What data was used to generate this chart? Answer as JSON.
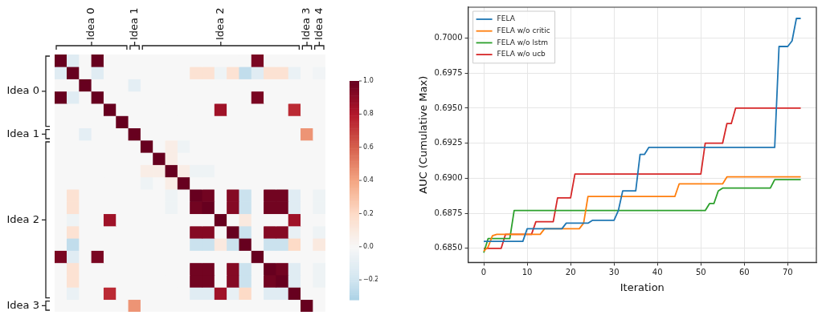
{
  "chart_data": [
    {
      "type": "heatmap",
      "categories": [
        null,
        null,
        "Idea 0",
        null,
        null,
        null,
        "Idea 1",
        null,
        null,
        null,
        null,
        null,
        null,
        "Idea 2",
        null,
        null,
        null,
        null,
        null,
        null,
        "Idea 3",
        "Idea 4"
      ],
      "y_categories": [
        null,
        null,
        "Idea 0",
        null,
        null,
        null,
        "Idea 1",
        null,
        null,
        null,
        null,
        null,
        null,
        "Idea 2",
        null,
        null,
        null,
        null,
        null,
        null,
        "Idea 3"
      ],
      "cells": [
        [
          1,
          -0.12,
          0,
          1,
          0,
          0,
          0,
          0,
          0,
          0,
          0,
          0,
          0,
          0,
          0,
          0,
          0.95,
          0,
          0,
          0,
          0,
          0
        ],
        [
          -0.12,
          1,
          0,
          -0.12,
          0,
          0,
          0,
          0,
          0,
          0,
          0,
          0.15,
          0.15,
          -0.05,
          0.15,
          -0.25,
          -0.12,
          0.15,
          0.15,
          -0.07,
          0,
          -0.03
        ],
        [
          0,
          0,
          1,
          0,
          0,
          0,
          -0.1,
          0,
          0,
          0,
          0,
          0,
          0,
          0,
          0,
          0,
          0,
          0,
          0,
          0,
          0,
          0
        ],
        [
          1,
          -0.12,
          0,
          1,
          0,
          0,
          0,
          0,
          0,
          0,
          0,
          0,
          0,
          0,
          0,
          0,
          0.95,
          0,
          0,
          0,
          0,
          0
        ],
        [
          0,
          0,
          0,
          0,
          1,
          0,
          0,
          0,
          0,
          0,
          0,
          0,
          0,
          0.85,
          0,
          0,
          0,
          0,
          0,
          0.75,
          0,
          0
        ],
        [
          0,
          0,
          0,
          0,
          0,
          1,
          0,
          0,
          0,
          0,
          0,
          0,
          0,
          0,
          0,
          0,
          0,
          0,
          0,
          0,
          0,
          0
        ],
        [
          0,
          0,
          -0.1,
          0,
          0,
          0,
          1,
          0,
          0,
          0,
          0,
          0,
          0,
          0,
          0,
          0,
          0,
          0,
          0,
          0,
          0.45,
          0
        ],
        [
          0,
          0,
          0,
          0,
          0,
          0,
          0,
          1,
          0,
          0.07,
          -0.05,
          0,
          0,
          0,
          0,
          0,
          0,
          0,
          0,
          0,
          0,
          0
        ],
        [
          0,
          0,
          0,
          0,
          0,
          0,
          0,
          0,
          1,
          0.07,
          0,
          0,
          0,
          0,
          0,
          0,
          0,
          0,
          0,
          0,
          0,
          0
        ],
        [
          0,
          0,
          0,
          0,
          0,
          0,
          0,
          0.07,
          0.07,
          1,
          0.07,
          -0.05,
          -0.05,
          0,
          0,
          0,
          0,
          0,
          0,
          0,
          0,
          0
        ],
        [
          0,
          0,
          0,
          0,
          0,
          0,
          0,
          -0.05,
          0,
          0.07,
          1,
          0,
          0,
          0,
          0,
          0,
          0,
          0,
          0,
          0,
          0,
          0
        ],
        [
          0,
          0.15,
          0,
          0,
          0,
          0,
          0,
          0,
          0,
          -0.05,
          0,
          1,
          0.97,
          0,
          0.92,
          -0.22,
          0,
          0.97,
          0.97,
          -0.12,
          0,
          -0.05
        ],
        [
          0,
          0.15,
          0,
          0,
          0,
          0,
          0,
          0,
          0,
          -0.05,
          0,
          0.97,
          1,
          0,
          0.92,
          -0.22,
          0,
          0.97,
          0.97,
          -0.12,
          0,
          -0.05
        ],
        [
          0,
          -0.05,
          0,
          0,
          0.85,
          0,
          0,
          0,
          0,
          0,
          0,
          0,
          0,
          1,
          0,
          0.1,
          0,
          0,
          0,
          0.85,
          0,
          0
        ],
        [
          0,
          0.15,
          0,
          0,
          0,
          0,
          0,
          0,
          0,
          0,
          0,
          0.92,
          0.92,
          0,
          1,
          -0.22,
          0,
          0.92,
          0.92,
          -0.08,
          0,
          -0.05
        ],
        [
          0,
          -0.25,
          0,
          0,
          0,
          0,
          0,
          0,
          0,
          0,
          0,
          -0.22,
          -0.22,
          0.1,
          -0.22,
          1,
          0,
          -0.22,
          -0.22,
          0.2,
          0,
          0.1
        ],
        [
          0.95,
          -0.12,
          0,
          0.95,
          0,
          0,
          0,
          0,
          0,
          0,
          0,
          0,
          0,
          0,
          0,
          0,
          1,
          0,
          0,
          0,
          0,
          0
        ],
        [
          0,
          0.15,
          0,
          0,
          0,
          0,
          0,
          0,
          0,
          0,
          0,
          0.97,
          0.97,
          0,
          0.92,
          -0.22,
          0,
          1,
          0.97,
          -0.12,
          0,
          -0.05
        ],
        [
          0,
          0.15,
          0,
          0,
          0,
          0,
          0,
          0,
          0,
          0,
          0,
          0.97,
          0.97,
          0,
          0.92,
          -0.22,
          0,
          0.97,
          1,
          -0.12,
          0,
          -0.05
        ],
        [
          0,
          -0.07,
          0,
          0,
          0.75,
          0,
          0,
          0,
          0,
          0,
          0,
          -0.12,
          -0.12,
          0.85,
          -0.08,
          0.2,
          0,
          -0.12,
          -0.12,
          1,
          0,
          0
        ],
        [
          0,
          0,
          0,
          0,
          0,
          0,
          0.45,
          0,
          0,
          0,
          0,
          0,
          0,
          0,
          0,
          0,
          0,
          0,
          0,
          0,
          1,
          0
        ]
      ],
      "clim": [
        -0.32,
        1.0
      ],
      "cticks": [
        {
          "value": -0.2,
          "label": "−0.2"
        },
        {
          "value": 0,
          "label": "0.0"
        },
        {
          "value": 0.2,
          "label": "0.2"
        },
        {
          "value": 0.4,
          "label": "0.4"
        },
        {
          "value": 0.6,
          "label": "0.6"
        },
        {
          "value": 0.8,
          "label": "0.8"
        },
        {
          "value": 1.0,
          "label": "1.0"
        }
      ]
    },
    {
      "type": "line",
      "xlabel": "Iteration",
      "ylabel": "AUC (Cumulative Max)",
      "xlim": [
        -3.6,
        76.6
      ],
      "ylim": [
        0.684,
        0.7022
      ],
      "xticks": [
        0,
        10,
        20,
        30,
        40,
        50,
        60,
        70
      ],
      "yticks": [
        {
          "value": 0.685,
          "label": "0.6850"
        },
        {
          "value": 0.6875,
          "label": "0.6875"
        },
        {
          "value": 0.69,
          "label": "0.6900"
        },
        {
          "value": 0.6925,
          "label": "0.6925"
        },
        {
          "value": 0.695,
          "label": "0.6950"
        },
        {
          "value": 0.6975,
          "label": "0.6975"
        },
        {
          "value": 0.7,
          "label": "0.7000"
        }
      ],
      "grid": true,
      "legend": "top left",
      "series": [
        {
          "name": "FELA",
          "color": "#1f77b4",
          "x": [
            0,
            9,
            10,
            18,
            19,
            24,
            25,
            30,
            31,
            32,
            35,
            36,
            37,
            38,
            67,
            68,
            70,
            71,
            72,
            73
          ],
          "values": [
            0.6855,
            0.6855,
            0.6864,
            0.6864,
            0.6868,
            0.6868,
            0.687,
            0.687,
            0.6877,
            0.6891,
            0.6891,
            0.6917,
            0.6917,
            0.6922,
            0.6922,
            0.6994,
            0.6994,
            0.6998,
            0.7014,
            0.7014
          ]
        },
        {
          "name": "FELA w/o critic",
          "color": "#ff7f0e",
          "x": [
            0,
            1,
            2,
            3,
            13,
            14,
            22,
            23,
            24,
            44,
            45,
            55,
            56,
            73
          ],
          "values": [
            0.6848,
            0.6851,
            0.6859,
            0.686,
            0.686,
            0.6864,
            0.6864,
            0.6868,
            0.6887,
            0.6887,
            0.6896,
            0.6896,
            0.6901,
            0.6901
          ]
        },
        {
          "name": "FELA w/o lstm",
          "color": "#2ca02c",
          "x": [
            0,
            1,
            6,
            7,
            51,
            52,
            53,
            54,
            55,
            66,
            67,
            73
          ],
          "values": [
            0.6847,
            0.6857,
            0.6857,
            0.6877,
            0.6877,
            0.6882,
            0.6882,
            0.6891,
            0.6893,
            0.6893,
            0.6899,
            0.6899
          ]
        },
        {
          "name": "FELA w/o ucb",
          "color": "#d62728",
          "x": [
            0,
            4,
            5,
            11,
            12,
            16,
            17,
            20,
            21,
            50,
            51,
            55,
            56,
            57,
            58,
            73
          ],
          "values": [
            0.685,
            0.685,
            0.686,
            0.686,
            0.6869,
            0.6869,
            0.6886,
            0.6886,
            0.6903,
            0.6903,
            0.6925,
            0.6925,
            0.6939,
            0.6939,
            0.695,
            0.695
          ]
        }
      ]
    }
  ]
}
